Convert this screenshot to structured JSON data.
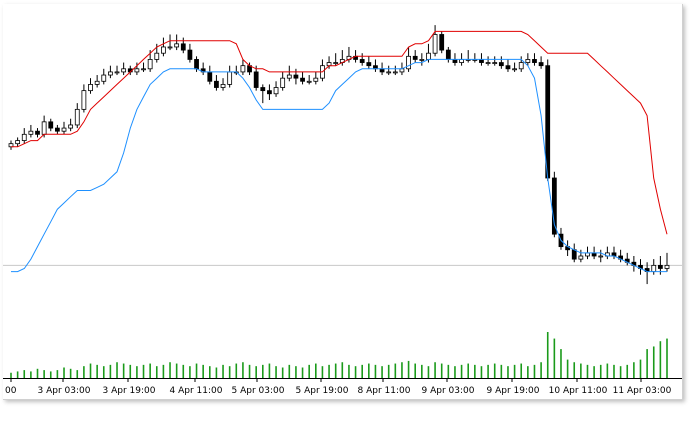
{
  "chart_data": {
    "type": "candlestick",
    "x_tick_labels": [
      "00",
      "3 Apr 03:00",
      "3 Apr 19:00",
      "4 Apr 11:00",
      "5 Apr 03:00",
      "5 Apr 19:00",
      "8 Apr 11:00",
      "9 Apr 03:00",
      "9 Apr 19:00",
      "10 Apr 11:00",
      "11 Apr 03:00"
    ],
    "ylim": [
      0,
      100
    ],
    "horizontal_line": 22,
    "grid": false,
    "legend": "none",
    "close": [
      61,
      62,
      64,
      65,
      64,
      68,
      66,
      65,
      66,
      67,
      72,
      78,
      80,
      81,
      83,
      84,
      84,
      85,
      84,
      85,
      85,
      88,
      90,
      92,
      92,
      93,
      91,
      88,
      85,
      84,
      81,
      79,
      80,
      84,
      84,
      86,
      84,
      79,
      78,
      77,
      79,
      82,
      83,
      82,
      81,
      81,
      82,
      86,
      87,
      87,
      88,
      89,
      88,
      87,
      86,
      85,
      84,
      84,
      84,
      85,
      89,
      88,
      88,
      90,
      96,
      91,
      88,
      87,
      88,
      88,
      88,
      87,
      87,
      87,
      86,
      85,
      85,
      87,
      88,
      87,
      86,
      50,
      32,
      28,
      27,
      24,
      25,
      26,
      25,
      25,
      26,
      25,
      24,
      23,
      22,
      21,
      20,
      22,
      21,
      22
    ],
    "open": [
      60,
      61,
      62,
      64,
      65,
      64,
      68,
      66,
      65,
      66,
      67,
      72,
      78,
      80,
      81,
      83,
      84,
      84,
      85,
      84,
      85,
      85,
      88,
      90,
      92,
      92,
      93,
      91,
      88,
      85,
      84,
      81,
      79,
      80,
      84,
      84,
      86,
      84,
      79,
      78,
      77,
      79,
      82,
      83,
      82,
      81,
      81,
      82,
      86,
      87,
      87,
      88,
      89,
      88,
      87,
      86,
      85,
      84,
      84,
      84,
      85,
      89,
      88,
      88,
      90,
      96,
      91,
      88,
      87,
      88,
      88,
      88,
      87,
      87,
      87,
      86,
      85,
      85,
      87,
      88,
      87,
      86,
      50,
      32,
      28,
      27,
      24,
      25,
      26,
      25,
      25,
      26,
      25,
      24,
      23,
      22,
      21,
      20,
      22,
      21
    ],
    "high": [
      62,
      63,
      66,
      67,
      66,
      70,
      69,
      67,
      68,
      69,
      74,
      80,
      82,
      83,
      85,
      86,
      86,
      87,
      86,
      87,
      87,
      91,
      93,
      95,
      96,
      96,
      95,
      93,
      89,
      87,
      86,
      83,
      82,
      86,
      86,
      88,
      87,
      86,
      80,
      80,
      81,
      84,
      86,
      85,
      84,
      83,
      84,
      88,
      89,
      90,
      91,
      92,
      91,
      90,
      89,
      88,
      87,
      86,
      86,
      87,
      92,
      91,
      90,
      93,
      99,
      97,
      92,
      90,
      90,
      91,
      90,
      90,
      89,
      89,
      89,
      88,
      87,
      89,
      90,
      90,
      89,
      88,
      52,
      34,
      30,
      29,
      27,
      28,
      28,
      27,
      28,
      28,
      27,
      26,
      25,
      24,
      23,
      24,
      25,
      26
    ],
    "low": [
      59,
      60,
      61,
      63,
      63,
      63,
      65,
      64,
      64,
      65,
      66,
      71,
      77,
      79,
      80,
      82,
      83,
      83,
      83,
      83,
      84,
      84,
      87,
      89,
      91,
      91,
      90,
      87,
      84,
      83,
      80,
      78,
      78,
      79,
      83,
      83,
      83,
      78,
      74,
      75,
      76,
      78,
      81,
      80,
      80,
      80,
      80,
      81,
      85,
      86,
      86,
      87,
      87,
      86,
      85,
      84,
      83,
      83,
      83,
      83,
      84,
      87,
      86,
      87,
      89,
      90,
      87,
      86,
      86,
      87,
      87,
      86,
      86,
      86,
      85,
      84,
      84,
      84,
      86,
      86,
      85,
      49,
      31,
      27,
      25,
      23,
      23,
      24,
      24,
      23,
      24,
      24,
      23,
      22,
      20,
      19,
      16,
      19,
      19,
      20
    ],
    "upper_band": [
      60,
      60,
      61,
      62,
      62,
      64,
      64,
      64,
      64,
      64,
      65,
      68,
      72,
      74,
      76,
      78,
      80,
      82,
      84,
      86,
      88,
      90,
      92,
      93,
      94,
      94,
      94,
      94,
      94,
      94,
      94,
      94,
      94,
      94,
      93,
      88,
      86,
      85,
      85,
      84,
      84,
      84,
      84,
      84,
      84,
      84,
      84,
      84,
      86,
      86,
      87,
      88,
      89,
      89,
      89,
      89,
      89,
      89,
      89,
      89,
      92,
      93,
      93,
      94,
      97,
      97,
      97,
      97,
      97,
      97,
      97,
      97,
      97,
      97,
      97,
      97,
      97,
      97,
      96,
      94,
      92,
      90,
      90,
      90,
      90,
      90,
      90,
      90,
      88,
      86,
      84,
      82,
      80,
      78,
      76,
      74,
      70,
      50,
      40,
      32
    ],
    "lower_band": [
      20,
      20,
      21,
      24,
      28,
      32,
      36,
      40,
      42,
      44,
      46,
      46,
      46,
      47,
      48,
      50,
      52,
      58,
      66,
      72,
      76,
      80,
      82,
      84,
      85,
      85,
      85,
      85,
      85,
      84,
      84,
      84,
      84,
      84,
      84,
      82,
      79,
      75,
      72,
      72,
      72,
      72,
      72,
      72,
      72,
      72,
      72,
      72,
      74,
      78,
      80,
      82,
      84,
      85,
      85,
      85,
      85,
      85,
      85,
      85,
      86,
      87,
      87,
      88,
      88,
      88,
      88,
      88,
      88,
      88,
      88,
      88,
      88,
      88,
      88,
      88,
      88,
      88,
      86,
      82,
      70,
      50,
      35,
      30,
      28,
      27,
      26,
      26,
      26,
      26,
      25,
      25,
      24,
      23,
      22,
      21,
      20,
      20,
      20,
      20
    ],
    "volume": [
      4,
      5,
      6,
      5,
      7,
      6,
      5,
      6,
      8,
      7,
      6,
      9,
      11,
      10,
      9,
      10,
      12,
      11,
      10,
      9,
      10,
      11,
      9,
      10,
      12,
      11,
      10,
      9,
      11,
      10,
      9,
      8,
      10,
      9,
      11,
      12,
      10,
      9,
      10,
      11,
      9,
      8,
      10,
      9,
      8,
      10,
      11,
      9,
      10,
      11,
      12,
      10,
      9,
      10,
      11,
      10,
      9,
      10,
      11,
      12,
      13,
      11,
      10,
      9,
      12,
      11,
      10,
      9,
      10,
      11,
      10,
      9,
      10,
      11,
      10,
      9,
      10,
      11,
      9,
      10,
      12,
      35,
      30,
      22,
      14,
      12,
      11,
      10,
      9,
      10,
      11,
      10,
      9,
      10,
      12,
      14,
      22,
      24,
      28,
      30
    ],
    "colors": {
      "candle": "#000000",
      "upper_band": "#e00000",
      "lower_band": "#1e90ff",
      "volume": "#1a9a1a",
      "horizontal_line": "#c8c8c8"
    }
  }
}
